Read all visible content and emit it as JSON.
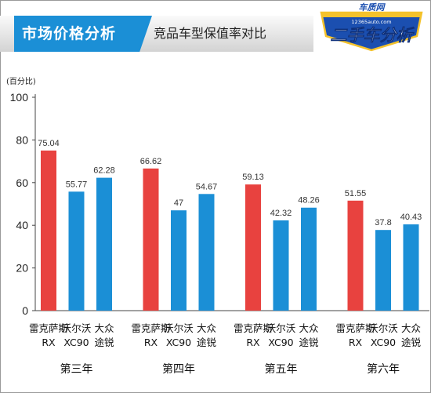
{
  "header": {
    "title": "市场价格分析",
    "subtitle": "竞品车型保值率对比",
    "logo_top": "车质网",
    "logo_url": "12365auto.com",
    "logo_main": "二手车分析"
  },
  "colors": {
    "accent_blue": "#1b8fd6",
    "highlight_red": "#e8423f",
    "logo_blue": "#1b4fb0",
    "logo_yellow": "#f4c22b"
  },
  "chart_data": {
    "type": "bar",
    "ylabel": "(百分比)",
    "ylim": [
      0,
      100
    ],
    "yticks": [
      0,
      20,
      40,
      60,
      80,
      100
    ],
    "grid": false,
    "legend": "none",
    "models": [
      "雷克萨斯 RX",
      "沃尔沃 XC90",
      "大众 途锐"
    ],
    "model_lines": [
      [
        "雷克萨斯",
        "RX"
      ],
      [
        "沃尔沃",
        "XC90"
      ],
      [
        "大众",
        "途锐"
      ]
    ],
    "model_colors": [
      "#e8423f",
      "#1b8fd6",
      "#1b8fd6"
    ],
    "groups": [
      {
        "label": "第三年",
        "values": [
          75.04,
          55.77,
          62.28
        ],
        "labels": [
          "75.04",
          "55.77",
          "62.28"
        ]
      },
      {
        "label": "第四年",
        "values": [
          66.62,
          47,
          54.67
        ],
        "labels": [
          "66.62",
          "47",
          "54.67"
        ]
      },
      {
        "label": "第五年",
        "values": [
          59.13,
          42.32,
          48.26
        ],
        "labels": [
          "59.13",
          "42.32",
          "48.26"
        ]
      },
      {
        "label": "第六年",
        "values": [
          51.55,
          37.8,
          40.43
        ],
        "labels": [
          "51.55",
          "37.8",
          "40.43"
        ]
      }
    ]
  }
}
